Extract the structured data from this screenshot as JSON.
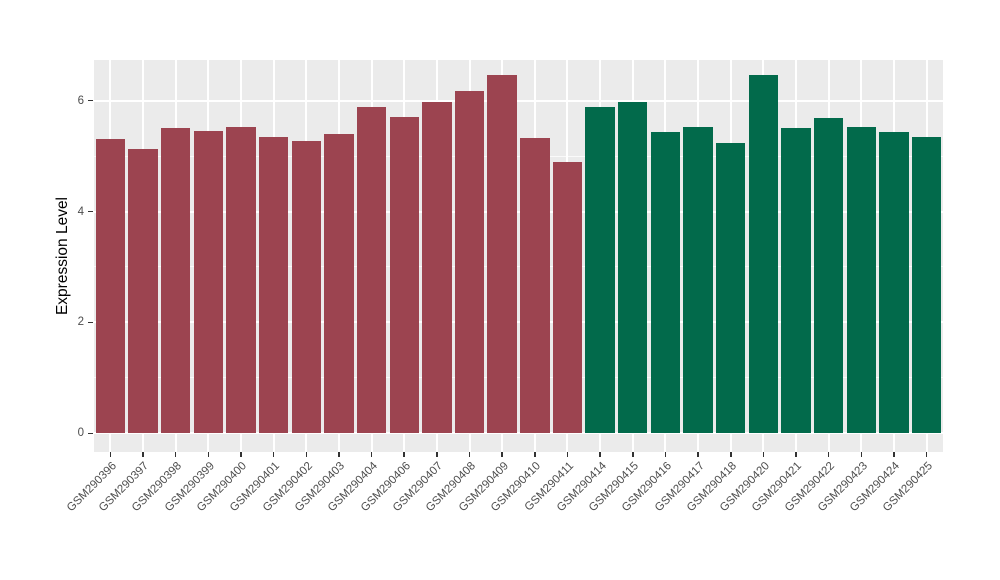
{
  "chart_data": {
    "type": "bar",
    "title": "",
    "xlabel": "",
    "ylabel": "Expression Level",
    "categories": [
      "GSM290396",
      "GSM290397",
      "GSM290398",
      "GSM290399",
      "GSM290400",
      "GSM290401",
      "GSM290402",
      "GSM290403",
      "GSM290404",
      "GSM290406",
      "GSM290407",
      "GSM290408",
      "GSM290409",
      "GSM290410",
      "GSM290411",
      "GSM290414",
      "GSM290415",
      "GSM290416",
      "GSM290417",
      "GSM290418",
      "GSM290420",
      "GSM290421",
      "GSM290422",
      "GSM290423",
      "GSM290424",
      "GSM290425"
    ],
    "values": [
      5.3,
      5.12,
      5.51,
      5.45,
      5.52,
      5.34,
      5.28,
      5.4,
      5.88,
      5.7,
      5.97,
      6.17,
      6.47,
      5.33,
      4.89,
      5.88,
      5.98,
      5.44,
      5.53,
      5.24,
      6.47,
      5.51,
      5.69,
      5.53,
      5.43,
      5.34
    ],
    "bar_groups": [
      "group1",
      "group1",
      "group1",
      "group1",
      "group1",
      "group1",
      "group1",
      "group1",
      "group1",
      "group1",
      "group1",
      "group1",
      "group1",
      "group1",
      "group1",
      "group2",
      "group2",
      "group2",
      "group2",
      "group2",
      "group2",
      "group2",
      "group2",
      "group2",
      "group2",
      "group2"
    ],
    "group_colors": {
      "group1": "#9C4450",
      "group2": "#026A4B"
    },
    "ylim": [
      0,
      6.73
    ],
    "yticks_major": [
      0,
      2,
      4,
      6
    ],
    "ytick_labels": [
      "0",
      "2",
      "4",
      "6"
    ],
    "yticks_minor": [
      1,
      3,
      5
    ],
    "grid": true,
    "legend": false,
    "panel_bg": "#EBEBEB",
    "grid_color": "#FFFFFF",
    "tick_color": "#333333",
    "tick_label_color": "#4D4D4D"
  }
}
